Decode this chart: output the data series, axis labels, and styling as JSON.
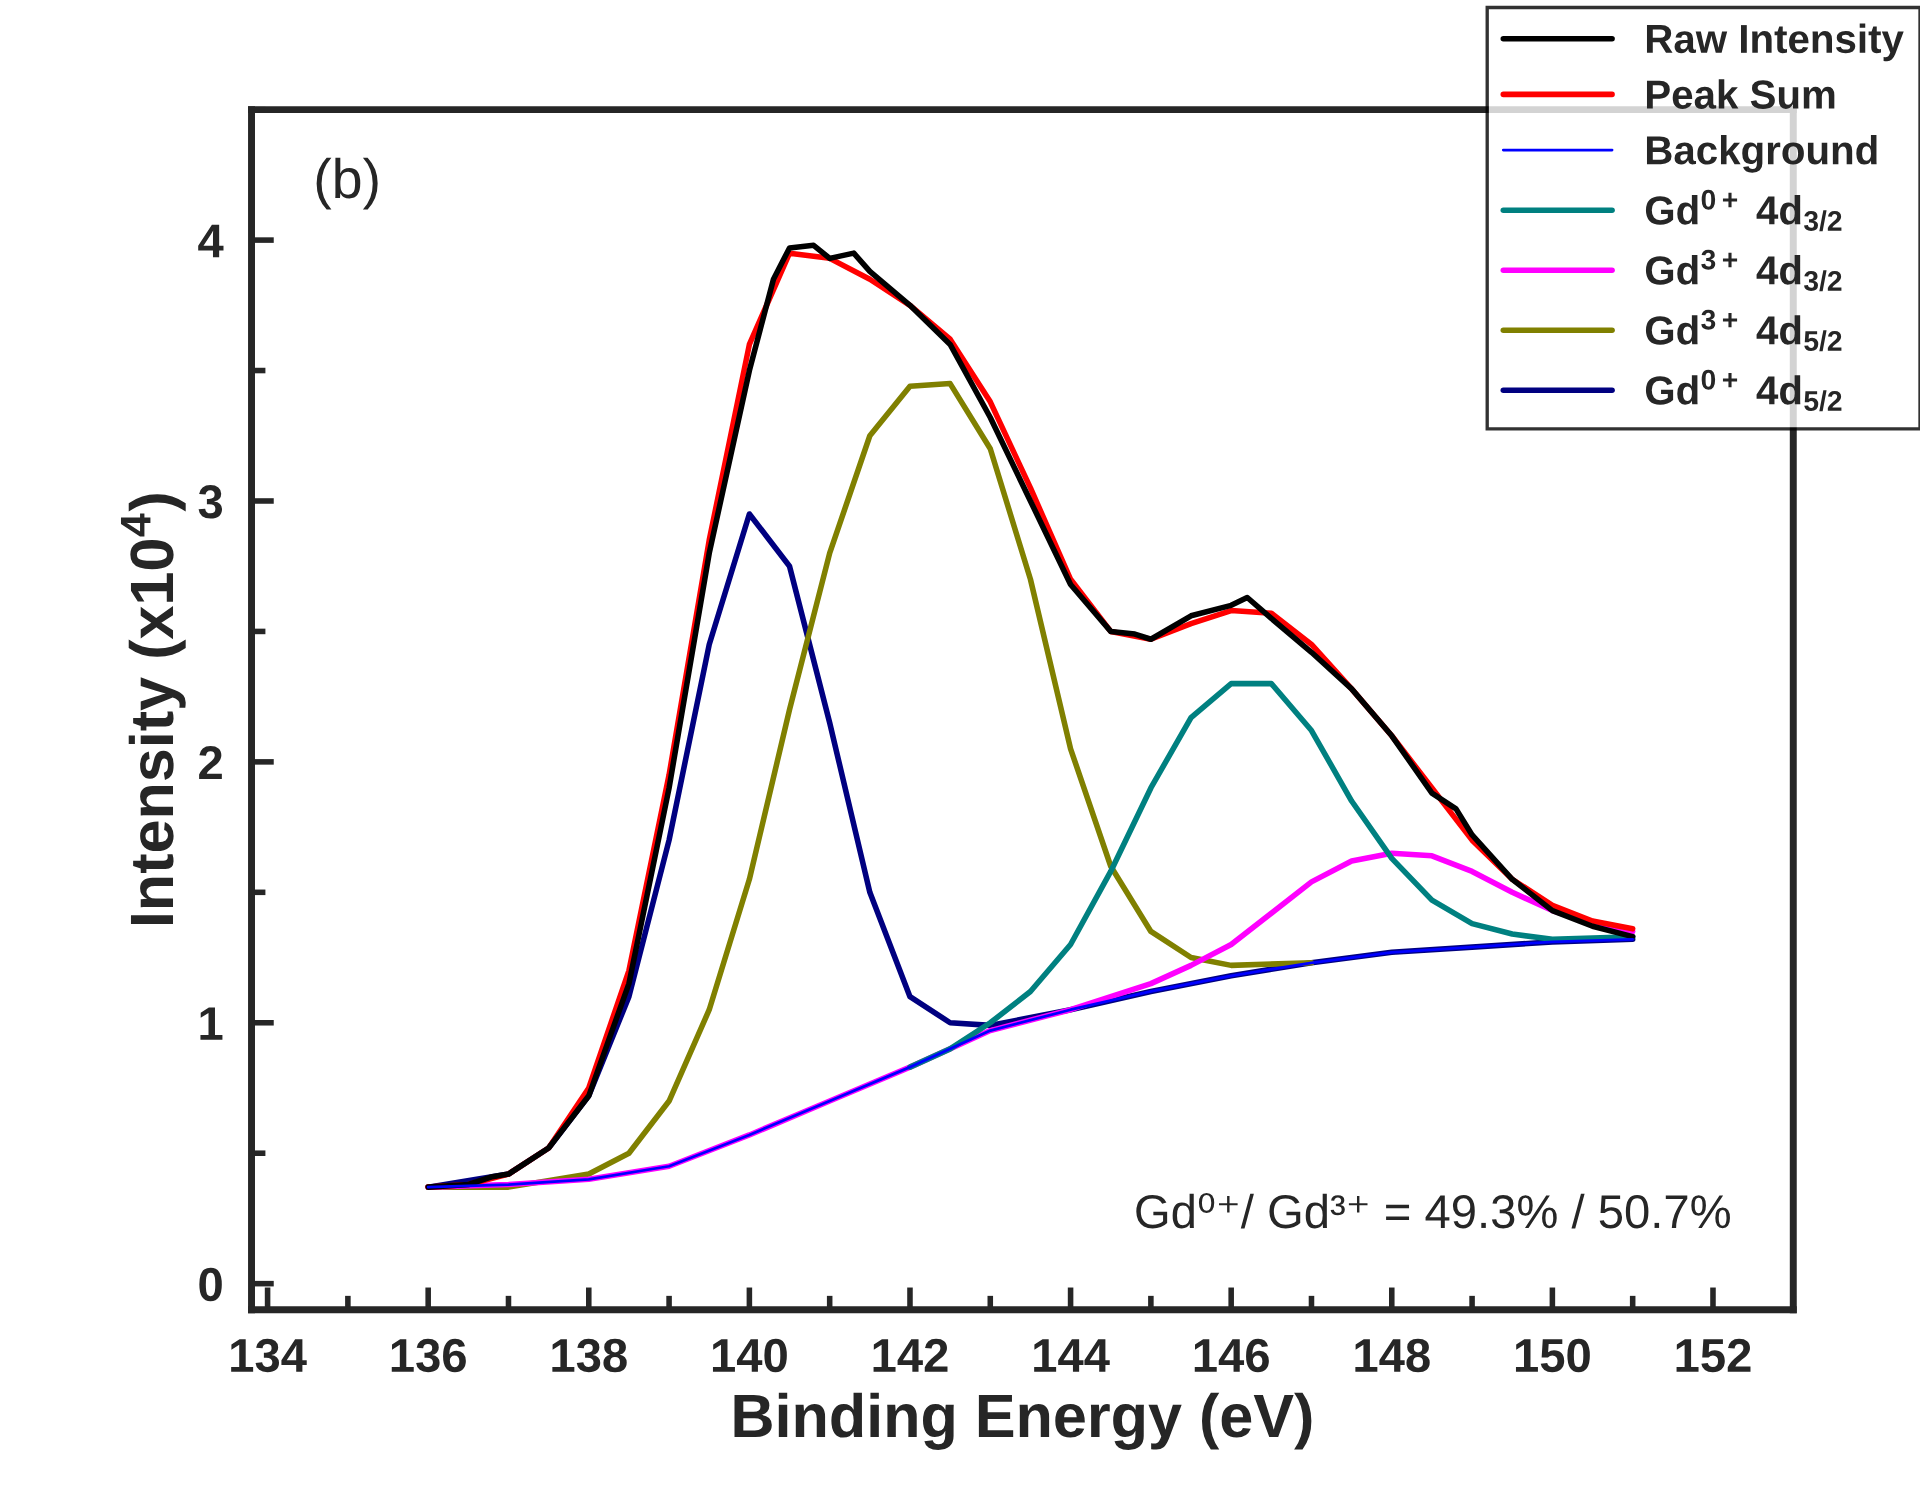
{
  "chart_data": {
    "type": "line",
    "xlabel": "Binding Energy (eV)",
    "ylabel": "Intensity (x10$^{4}$)",
    "xlim": [
      133.8,
      153
    ],
    "ylim": [
      -0.1,
      4.5
    ],
    "xticks": [
      134,
      136,
      138,
      140,
      142,
      144,
      146,
      148,
      150,
      152
    ],
    "yticks": [
      0,
      1,
      2,
      3,
      4
    ],
    "grid": false,
    "legend": "top right",
    "marker": "none",
    "line_style": "solid",
    "annotations": [
      "(b)",
      "Gd⁰⁺/ Gd³⁺ = 49.3% / 50.7%"
    ],
    "series": [
      {
        "name": "Raw Intensity",
        "color": "#000000",
        "x": [
          136,
          136.5,
          136.8,
          137,
          137.5,
          138,
          138.5,
          139,
          139.5,
          140,
          140.3,
          140.5,
          140.8,
          141,
          141.3,
          141.5,
          142,
          142.5,
          143,
          143.5,
          144,
          144.5,
          144.8,
          145,
          145.5,
          146,
          146.2,
          146.5,
          147,
          147.5,
          148,
          148.5,
          148.8,
          149,
          149.5,
          150,
          150.5,
          151
        ],
        "values": [
          0.37,
          0.38,
          0.41,
          0.42,
          0.52,
          0.72,
          1.15,
          1.9,
          2.8,
          3.5,
          3.85,
          3.97,
          3.98,
          3.93,
          3.95,
          3.88,
          3.75,
          3.6,
          3.32,
          3.0,
          2.68,
          2.5,
          2.49,
          2.47,
          2.56,
          2.6,
          2.63,
          2.55,
          2.42,
          2.28,
          2.1,
          1.88,
          1.82,
          1.72,
          1.55,
          1.43,
          1.37,
          1.33
        ]
      },
      {
        "name": "Peak Sum",
        "color": "#ff0000",
        "x": [
          136,
          136.5,
          137,
          137.5,
          138,
          138.5,
          139,
          139.5,
          140,
          140.5,
          141,
          141.5,
          142,
          142.5,
          143,
          143.5,
          144,
          144.5,
          145,
          145.5,
          146,
          146.5,
          147,
          147.5,
          148,
          148.5,
          149,
          149.5,
          150,
          150.5,
          151
        ],
        "values": [
          0.37,
          0.38,
          0.42,
          0.52,
          0.75,
          1.2,
          1.95,
          2.85,
          3.6,
          3.95,
          3.93,
          3.85,
          3.75,
          3.62,
          3.38,
          3.05,
          2.7,
          2.5,
          2.47,
          2.53,
          2.58,
          2.57,
          2.45,
          2.28,
          2.1,
          1.9,
          1.7,
          1.55,
          1.45,
          1.39,
          1.36
        ]
      },
      {
        "name": "Background",
        "color": "#0000ff",
        "x": [
          136,
          137,
          138,
          139,
          140,
          141,
          142,
          143,
          144,
          145,
          146,
          147,
          148,
          149,
          150,
          151
        ],
        "values": [
          0.37,
          0.38,
          0.4,
          0.45,
          0.57,
          0.7,
          0.83,
          0.97,
          1.05,
          1.12,
          1.18,
          1.23,
          1.27,
          1.29,
          1.31,
          1.32
        ]
      },
      {
        "name": "Gd$^{0+}$ 4d$_{3/2}$",
        "color": "#008080",
        "x": [
          142,
          142.5,
          143,
          143.5,
          144,
          144.5,
          145,
          145.5,
          146,
          146.5,
          147,
          147.5,
          148,
          148.5,
          149,
          149.5,
          150,
          151
        ],
        "values": [
          0.83,
          0.9,
          1.0,
          1.12,
          1.3,
          1.58,
          1.9,
          2.17,
          2.3,
          2.3,
          2.12,
          1.85,
          1.63,
          1.47,
          1.38,
          1.34,
          1.32,
          1.33
        ]
      },
      {
        "name": "Gd$^{3+}$ 4d$_{3/2}$",
        "color": "#ff00ff",
        "x": [
          136,
          137,
          138,
          139,
          140,
          141,
          142,
          143,
          144,
          145,
          145.5,
          146,
          146.5,
          147,
          147.5,
          148,
          148.5,
          149,
          149.5,
          150,
          150.5,
          151
        ],
        "values": [
          0.37,
          0.38,
          0.4,
          0.45,
          0.57,
          0.7,
          0.83,
          0.97,
          1.05,
          1.15,
          1.22,
          1.3,
          1.42,
          1.54,
          1.62,
          1.65,
          1.64,
          1.58,
          1.5,
          1.43,
          1.38,
          1.35
        ]
      },
      {
        "name": "Gd$^{3+}$ 4d$_{5/2}$",
        "color": "#808000",
        "x": [
          136,
          137,
          138,
          138.5,
          139,
          139.5,
          140,
          140.5,
          141,
          141.5,
          142,
          142.5,
          143,
          143.5,
          144,
          144.5,
          145,
          145.5,
          146,
          147
        ],
        "values": [
          0.37,
          0.37,
          0.42,
          0.5,
          0.7,
          1.05,
          1.55,
          2.2,
          2.8,
          3.25,
          3.44,
          3.45,
          3.2,
          2.7,
          2.05,
          1.6,
          1.35,
          1.25,
          1.22,
          1.23
        ]
      },
      {
        "name": "Gd$^{0+}$ 4d$_{5/2}$",
        "color": "#000080",
        "x": [
          136,
          137,
          137.5,
          138,
          138.5,
          139,
          139.5,
          140,
          140.5,
          141,
          141.5,
          142,
          142.5,
          143,
          144,
          145,
          146,
          147,
          148,
          149,
          150,
          151
        ],
        "values": [
          0.37,
          0.42,
          0.52,
          0.72,
          1.1,
          1.7,
          2.45,
          2.95,
          2.75,
          2.15,
          1.5,
          1.1,
          1.0,
          0.99,
          1.05,
          1.12,
          1.18,
          1.23,
          1.27,
          1.29,
          1.31,
          1.32
        ]
      }
    ]
  }
}
